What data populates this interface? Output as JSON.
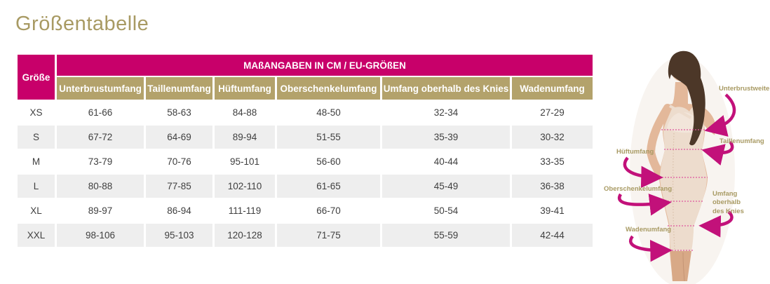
{
  "page": {
    "title": "Größentabelle"
  },
  "colors": {
    "brand_pink": "#C8006A",
    "arrow_pink": "#C2117A",
    "header_gold": "#B3A26B",
    "title_gold": "#A89A63",
    "row_alt_gray": "#EEEEEE",
    "cell_text": "#3F3F3F"
  },
  "size_table": {
    "corner_header": "Größe",
    "group_header": "MAßANGABEN IN CM / EU-GRÖßEN",
    "columns": [
      "Unterbrustumfang",
      "Taillenumfang",
      "Hüftumfang",
      "Oberschenkelumfang",
      "Umfang oberhalb des Knies",
      "Wadenumfang"
    ],
    "rows": [
      {
        "size": "XS",
        "values": [
          "61-66",
          "58-63",
          "84-88",
          "48-50",
          "32-34",
          "27-29"
        ]
      },
      {
        "size": "S",
        "values": [
          "67-72",
          "64-69",
          "89-94",
          "51-55",
          "35-39",
          "30-32"
        ]
      },
      {
        "size": "M",
        "values": [
          "73-79",
          "70-76",
          "95-101",
          "56-60",
          "40-44",
          "33-35"
        ]
      },
      {
        "size": "L",
        "values": [
          "80-88",
          "77-85",
          "102-110",
          "61-65",
          "45-49",
          "36-38"
        ]
      },
      {
        "size": "XL",
        "values": [
          "89-97",
          "86-94",
          "111-119",
          "66-70",
          "50-54",
          "39-41"
        ]
      },
      {
        "size": "XXL",
        "values": [
          "98-106",
          "95-103",
          "120-128",
          "71-75",
          "55-59",
          "42-44"
        ]
      }
    ]
  },
  "figure": {
    "labels": [
      {
        "id": "unterbrustweite",
        "text": "Unterbrustweite"
      },
      {
        "id": "taillenumfang",
        "text": "Taillenumfang"
      },
      {
        "id": "hueftumfang",
        "text": "Hüftumfang"
      },
      {
        "id": "oberschenkelumfang",
        "text": "Oberschenkelumfang"
      },
      {
        "id": "umfang-oberhalb-des-knies",
        "text": "Umfang oberhalb des Knies"
      },
      {
        "id": "wadenumfang",
        "text": "Wadenumfang"
      }
    ]
  }
}
